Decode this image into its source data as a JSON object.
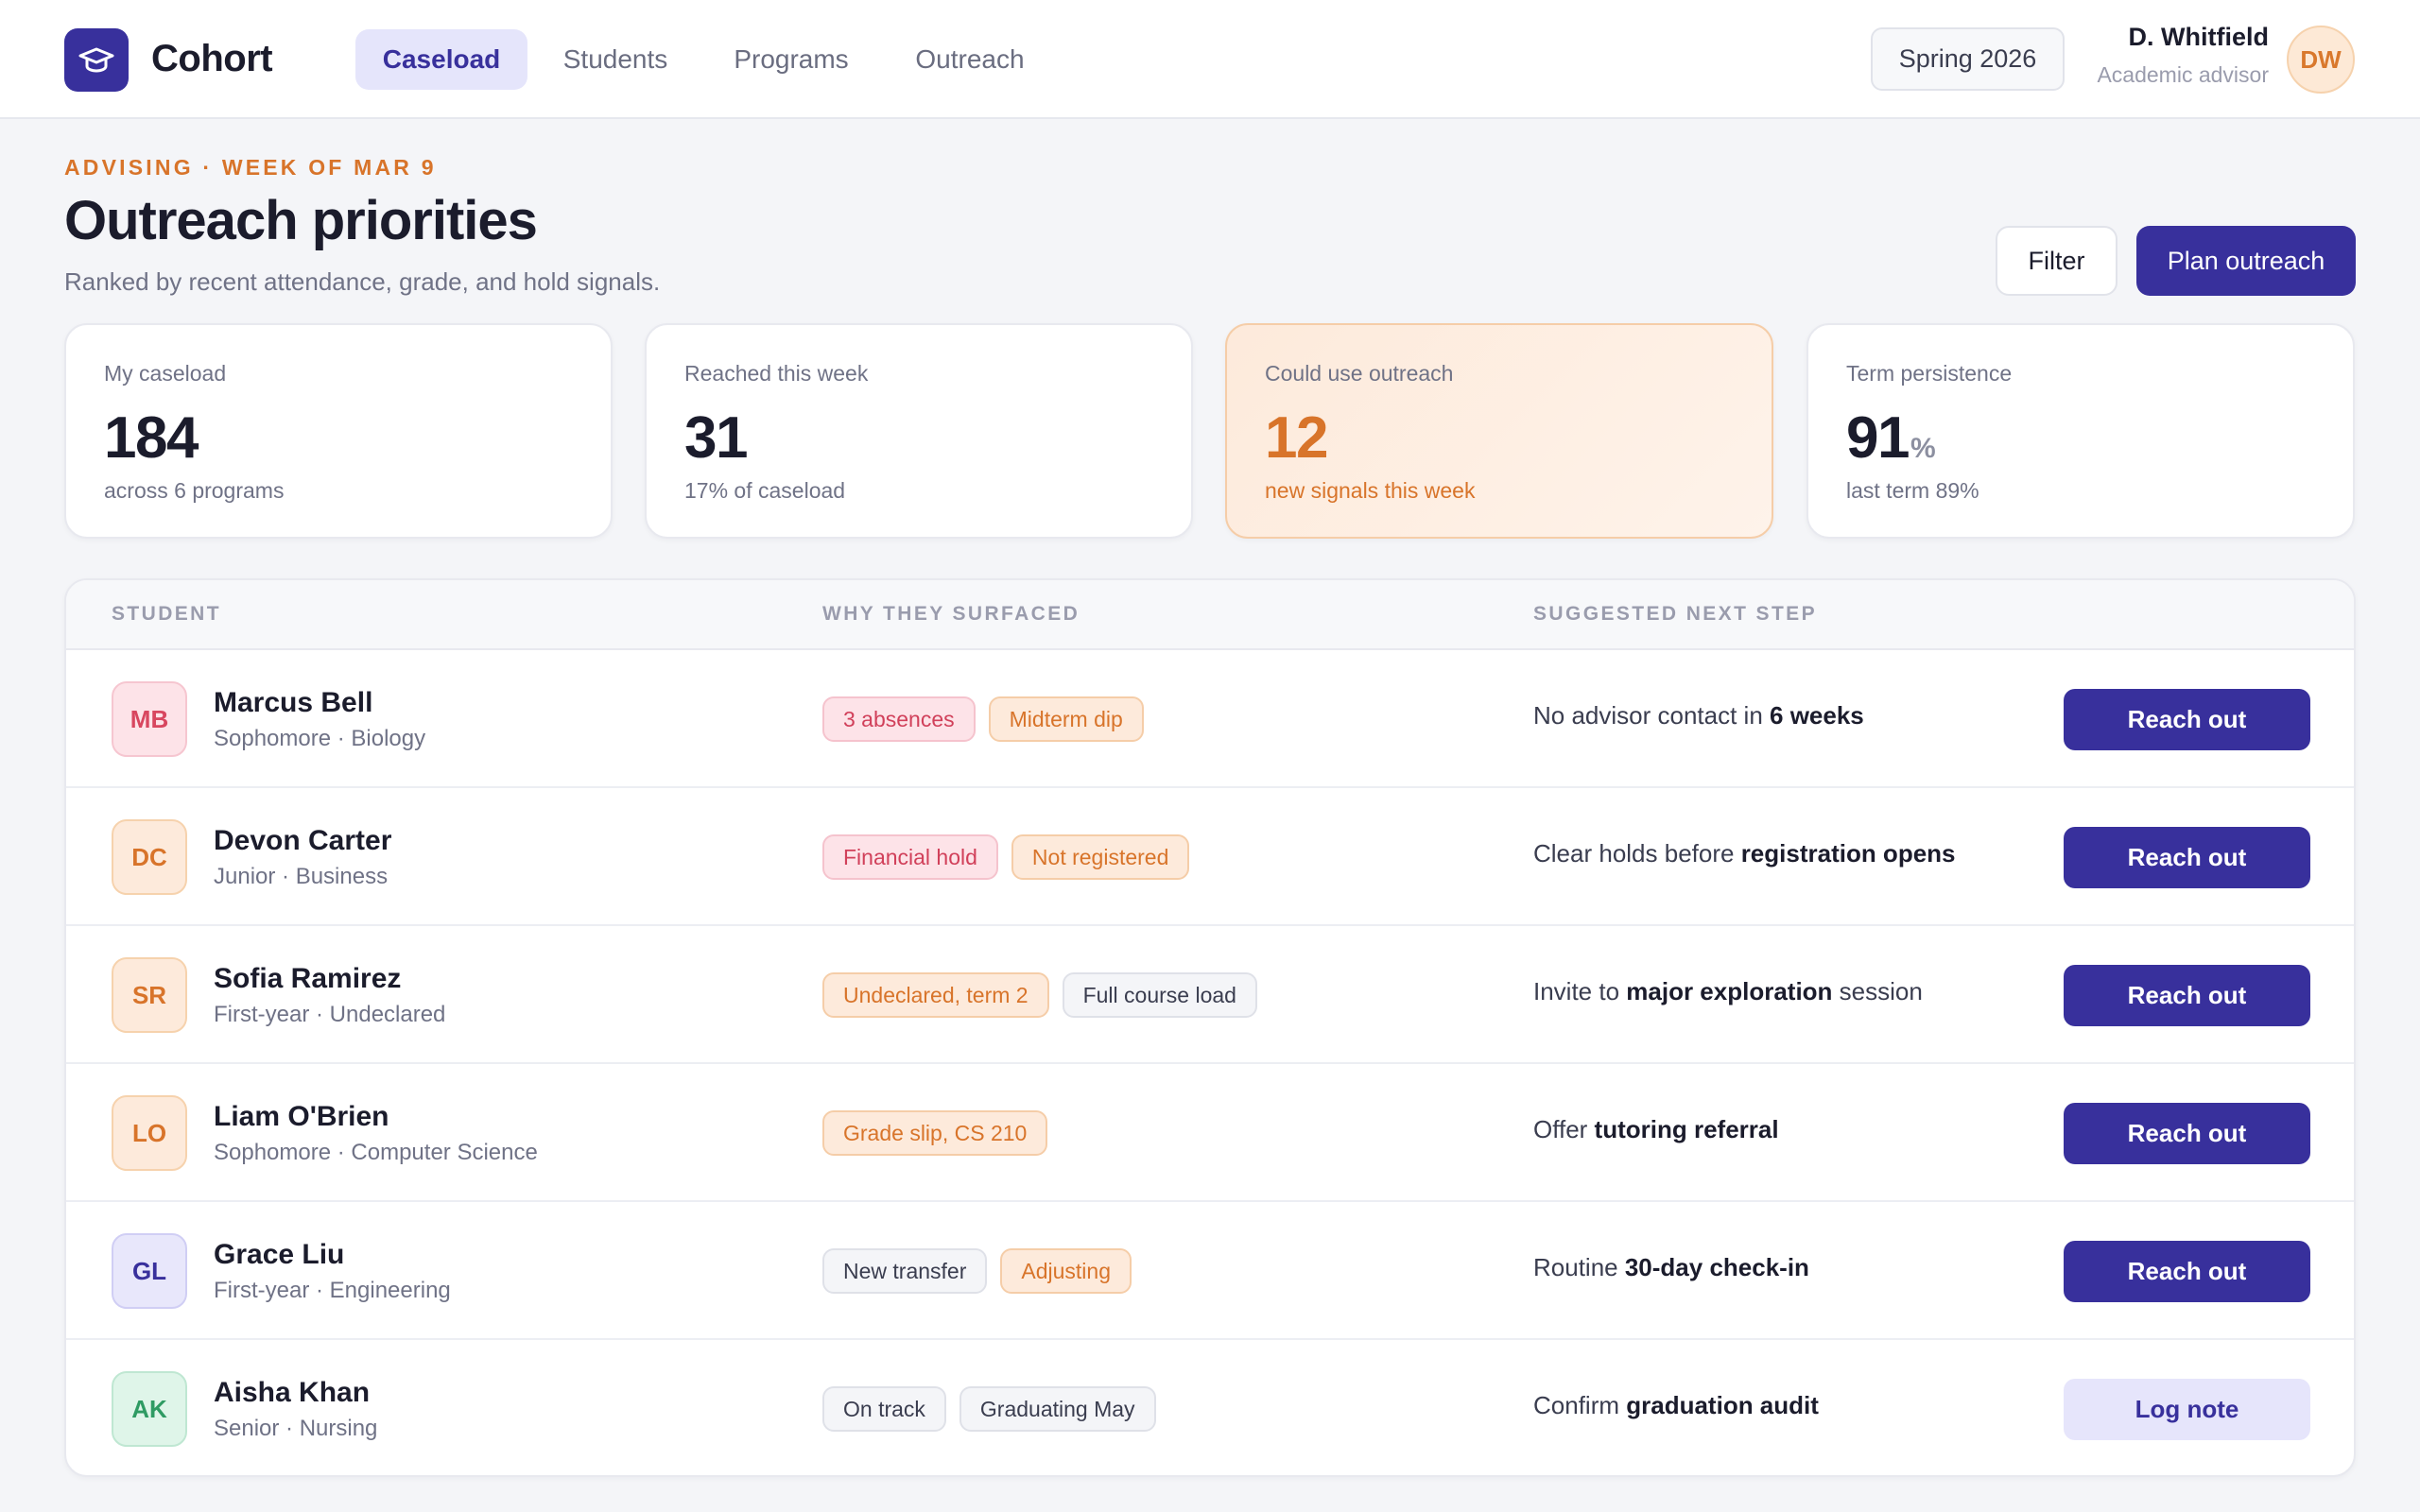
{
  "app": {
    "brand": "Cohort",
    "logo_icon": "graduation-cap-icon",
    "nav": [
      {
        "label": "Caseload",
        "active": true
      },
      {
        "label": "Students",
        "active": false
      },
      {
        "label": "Programs",
        "active": false
      },
      {
        "label": "Outreach",
        "active": false
      }
    ],
    "term": "Spring 2026",
    "user": {
      "name": "D. Whitfield",
      "role": "Academic advisor",
      "initials": "DW"
    }
  },
  "header": {
    "eyebrow": "ADVISING · WEEK OF MAR 9",
    "title": "Outreach priorities",
    "subtitle": "Ranked by recent attendance, grade, and hold signals.",
    "filter_label": "Filter",
    "primary_label": "Plan outreach"
  },
  "stats": [
    {
      "label": "My caseload",
      "value": "184",
      "unit": "",
      "sub": "across 6 programs",
      "highlight": false
    },
    {
      "label": "Reached this week",
      "value": "31",
      "unit": "",
      "sub": "17% of caseload",
      "highlight": false
    },
    {
      "label": "Could use outreach",
      "value": "12",
      "unit": "",
      "sub": "new signals this week",
      "highlight": true
    },
    {
      "label": "Term persistence",
      "value": "91",
      "unit": "%",
      "sub": "last term 89%",
      "highlight": false
    }
  ],
  "table": {
    "columns": [
      "STUDENT",
      "WHY THEY SURFACED",
      "SUGGESTED NEXT STEP"
    ],
    "rows": [
      {
        "initials": "MB",
        "tone": "rose",
        "name": "Marcus Bell",
        "meta": "Sophomore · Biology",
        "tags": [
          {
            "text": "3 absences",
            "tone": "rose"
          },
          {
            "text": "Midterm dip",
            "tone": "peach"
          }
        ],
        "next_prefix": "No advisor contact in ",
        "next_bold": "6 weeks",
        "next_suffix": "",
        "action": "Reach out",
        "action_style": "primary"
      },
      {
        "initials": "DC",
        "tone": "peach",
        "name": "Devon Carter",
        "meta": "Junior · Business",
        "tags": [
          {
            "text": "Financial hold",
            "tone": "rose"
          },
          {
            "text": "Not registered",
            "tone": "peach"
          }
        ],
        "next_prefix": "Clear holds before ",
        "next_bold": "registration opens",
        "next_suffix": "",
        "action": "Reach out",
        "action_style": "primary"
      },
      {
        "initials": "SR",
        "tone": "peach",
        "name": "Sofia Ramirez",
        "meta": "First-year · Undeclared",
        "tags": [
          {
            "text": "Undeclared, term 2",
            "tone": "peach"
          },
          {
            "text": "Full course load",
            "tone": "gray"
          }
        ],
        "next_prefix": "Invite to ",
        "next_bold": "major exploration",
        "next_suffix": " session",
        "action": "Reach out",
        "action_style": "primary"
      },
      {
        "initials": "LO",
        "tone": "peach",
        "name": "Liam O'Brien",
        "meta": "Sophomore · Computer Science",
        "tags": [
          {
            "text": "Grade slip, CS 210",
            "tone": "peach"
          }
        ],
        "next_prefix": "Offer ",
        "next_bold": "tutoring referral",
        "next_suffix": "",
        "action": "Reach out",
        "action_style": "primary"
      },
      {
        "initials": "GL",
        "tone": "violet",
        "name": "Grace Liu",
        "meta": "First-year · Engineering",
        "tags": [
          {
            "text": "New transfer",
            "tone": "gray"
          },
          {
            "text": "Adjusting",
            "tone": "peach"
          }
        ],
        "next_prefix": "Routine ",
        "next_bold": "30-day check-in",
        "next_suffix": "",
        "action": "Reach out",
        "action_style": "primary"
      },
      {
        "initials": "AK",
        "tone": "mint",
        "name": "Aisha Khan",
        "meta": "Senior · Nursing",
        "tags": [
          {
            "text": "On track",
            "tone": "gray"
          },
          {
            "text": "Graduating May",
            "tone": "gray"
          }
        ],
        "next_prefix": "Confirm ",
        "next_bold": "graduation audit",
        "next_suffix": "",
        "action": "Log note",
        "action_style": "soft"
      }
    ]
  },
  "colors": {
    "accent": "#38309c",
    "warm": "#d8742a",
    "rose": "#d1405a",
    "mint": "#2f9b63"
  }
}
